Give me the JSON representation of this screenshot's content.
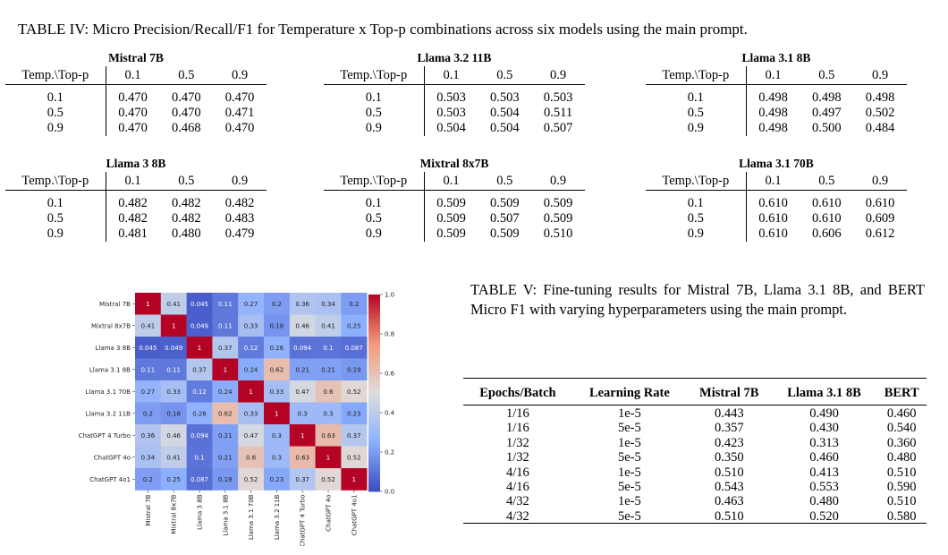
{
  "table4": {
    "caption": "TABLE IV: Micro Precision/Recall/F1 for Temperature x Top-p combinations across six models using the main prompt.",
    "row_header": "Temp.\\Top-p",
    "col_headers": [
      "0.1",
      "0.5",
      "0.9"
    ],
    "row_labels": [
      "0.1",
      "0.5",
      "0.9"
    ],
    "models": [
      {
        "name": "Mistral 7B",
        "rows": [
          [
            "0.470",
            "0.470",
            "0.470"
          ],
          [
            "0.470",
            "0.470",
            "0.471"
          ],
          [
            "0.470",
            "0.468",
            "0.470"
          ]
        ]
      },
      {
        "name": "Llama 3.2 11B",
        "rows": [
          [
            "0.503",
            "0.503",
            "0.503"
          ],
          [
            "0.503",
            "0.504",
            "0.511"
          ],
          [
            "0.504",
            "0.504",
            "0.507"
          ]
        ]
      },
      {
        "name": "Llama 3.1 8B",
        "rows": [
          [
            "0.498",
            "0.498",
            "0.498"
          ],
          [
            "0.498",
            "0.497",
            "0.502"
          ],
          [
            "0.498",
            "0.500",
            "0.484"
          ]
        ]
      },
      {
        "name": "Llama 3 8B",
        "rows": [
          [
            "0.482",
            "0.482",
            "0.482"
          ],
          [
            "0.482",
            "0.482",
            "0.483"
          ],
          [
            "0.481",
            "0.480",
            "0.479"
          ]
        ]
      },
      {
        "name": "Mixtral 8x7B",
        "rows": [
          [
            "0.509",
            "0.509",
            "0.509"
          ],
          [
            "0.509",
            "0.507",
            "0.509"
          ],
          [
            "0.509",
            "0.509",
            "0.510"
          ]
        ]
      },
      {
        "name": "Llama 3.1 70B",
        "rows": [
          [
            "0.610",
            "0.610",
            "0.610"
          ],
          [
            "0.610",
            "0.610",
            "0.609"
          ],
          [
            "0.610",
            "0.606",
            "0.612"
          ]
        ]
      }
    ]
  },
  "chart_data": {
    "type": "heatmap",
    "labels": [
      "Mistral 7B",
      "Mixtral 8x7B",
      "Llama 3 8B",
      "Llama 3.1 8B",
      "Llama 3.1 70B",
      "Llama 3.2 11B",
      "ChatGPT 4 Turbo",
      "ChatGPT 4o",
      "ChatGPT 4o1"
    ],
    "matrix": [
      [
        1,
        0.41,
        0.045,
        0.11,
        0.27,
        0.2,
        0.36,
        0.34,
        0.2
      ],
      [
        0.41,
        1,
        0.049,
        0.11,
        0.33,
        0.18,
        0.46,
        0.41,
        0.25
      ],
      [
        0.045,
        0.049,
        1,
        0.37,
        0.12,
        0.26,
        0.094,
        0.1,
        0.087
      ],
      [
        0.11,
        0.11,
        0.37,
        1,
        0.24,
        0.62,
        0.21,
        0.21,
        0.19
      ],
      [
        0.27,
        0.33,
        0.12,
        0.24,
        1,
        0.33,
        0.47,
        0.6,
        0.52
      ],
      [
        0.2,
        0.18,
        0.26,
        0.62,
        0.33,
        1,
        0.3,
        0.3,
        0.23
      ],
      [
        0.36,
        0.46,
        0.094,
        0.21,
        0.47,
        0.3,
        1,
        0.63,
        0.37
      ],
      [
        0.34,
        0.41,
        0.1,
        0.21,
        0.6,
        0.3,
        0.63,
        1,
        0.52
      ],
      [
        0.2,
        0.25,
        0.087,
        0.19,
        0.52,
        0.23,
        0.37,
        0.52,
        1
      ]
    ],
    "colorbar_ticks": [
      "0.0",
      "0.2",
      "0.4",
      "0.6",
      "0.8",
      "1.0"
    ],
    "vmin": 0,
    "vmax": 1,
    "colormap": "coolwarm",
    "low_color": "#3b4cc0",
    "mid_color": "#dddddd",
    "high_color": "#b40426"
  },
  "table5": {
    "caption": "TABLE V: Fine-tuning results for Mistral 7B, Llama 3.1 8B, and BERT Micro F1 with varying hyperparameters using the main prompt.",
    "headers": [
      "Epochs/Batch",
      "Learning Rate",
      "Mistral 7B",
      "Llama 3.1 8B",
      "BERT"
    ],
    "rows": [
      [
        "1/16",
        "1e-5",
        "0.443",
        "0.490",
        "0.460"
      ],
      [
        "1/16",
        "5e-5",
        "0.357",
        "0.430",
        "0.540"
      ],
      [
        "1/32",
        "1e-5",
        "0.423",
        "0.313",
        "0.360"
      ],
      [
        "1/32",
        "5e-5",
        "0.350",
        "0.460",
        "0.480"
      ],
      [
        "4/16",
        "1e-5",
        "0.510",
        "0.413",
        "0.510"
      ],
      [
        "4/16",
        "5e-5",
        "0.543",
        "0.553",
        "0.590"
      ],
      [
        "4/32",
        "1e-5",
        "0.463",
        "0.480",
        "0.510"
      ],
      [
        "4/32",
        "5e-5",
        "0.510",
        "0.520",
        "0.580"
      ]
    ]
  }
}
